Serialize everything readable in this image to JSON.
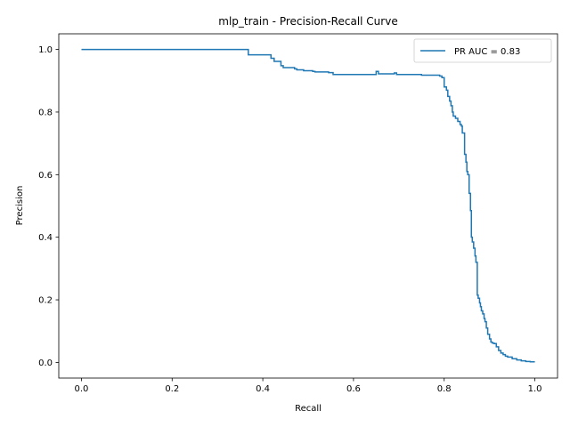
{
  "chart_data": {
    "type": "line",
    "title": "mlp_train - Precision-Recall Curve",
    "xlabel": "Recall",
    "ylabel": "Precision",
    "xlim": [
      -0.05,
      1.05
    ],
    "ylim": [
      -0.05,
      1.05
    ],
    "xticks": [
      0.0,
      0.2,
      0.4,
      0.6,
      0.8,
      1.0
    ],
    "xtick_labels": [
      "0.0",
      "0.2",
      "0.4",
      "0.6",
      "0.8",
      "1.0"
    ],
    "yticks": [
      0.0,
      0.2,
      0.4,
      0.6,
      0.8,
      1.0
    ],
    "ytick_labels": [
      "0.0",
      "0.2",
      "0.4",
      "0.6",
      "0.8",
      "1.0"
    ],
    "grid": false,
    "legend": {
      "placement": "upper-right",
      "entries": [
        "PR AUC = 0.83"
      ]
    },
    "series": [
      {
        "name": "PR AUC = 0.83",
        "color": "#1f77b4",
        "x": [
          0.0,
          0.365,
          0.368,
          0.408,
          0.418,
          0.425,
          0.44,
          0.445,
          0.47,
          0.475,
          0.49,
          0.51,
          0.515,
          0.545,
          0.555,
          0.65,
          0.655,
          0.69,
          0.695,
          0.75,
          0.78,
          0.79,
          0.795,
          0.8,
          0.805,
          0.808,
          0.812,
          0.815,
          0.818,
          0.82,
          0.825,
          0.83,
          0.835,
          0.838,
          0.84,
          0.845,
          0.848,
          0.85,
          0.852,
          0.855,
          0.858,
          0.86,
          0.862,
          0.865,
          0.868,
          0.87,
          0.873,
          0.875,
          0.878,
          0.88,
          0.882,
          0.885,
          0.888,
          0.89,
          0.893,
          0.896,
          0.9,
          0.903,
          0.906,
          0.91,
          0.915,
          0.92,
          0.925,
          0.93,
          0.935,
          0.94,
          0.95,
          0.96,
          0.97,
          0.98,
          0.99,
          1.0
        ],
        "y": [
          1.0,
          1.0,
          0.983,
          0.983,
          0.972,
          0.962,
          0.948,
          0.942,
          0.938,
          0.935,
          0.932,
          0.93,
          0.928,
          0.926,
          0.92,
          0.93,
          0.922,
          0.925,
          0.92,
          0.918,
          0.918,
          0.915,
          0.91,
          0.88,
          0.87,
          0.85,
          0.835,
          0.82,
          0.8,
          0.787,
          0.78,
          0.77,
          0.76,
          0.755,
          0.733,
          0.665,
          0.64,
          0.61,
          0.6,
          0.54,
          0.485,
          0.4,
          0.385,
          0.365,
          0.34,
          0.32,
          0.215,
          0.205,
          0.19,
          0.178,
          0.165,
          0.155,
          0.14,
          0.13,
          0.11,
          0.09,
          0.075,
          0.065,
          0.062,
          0.06,
          0.05,
          0.038,
          0.03,
          0.025,
          0.02,
          0.017,
          0.012,
          0.008,
          0.005,
          0.003,
          0.002,
          0.002
        ]
      }
    ]
  }
}
